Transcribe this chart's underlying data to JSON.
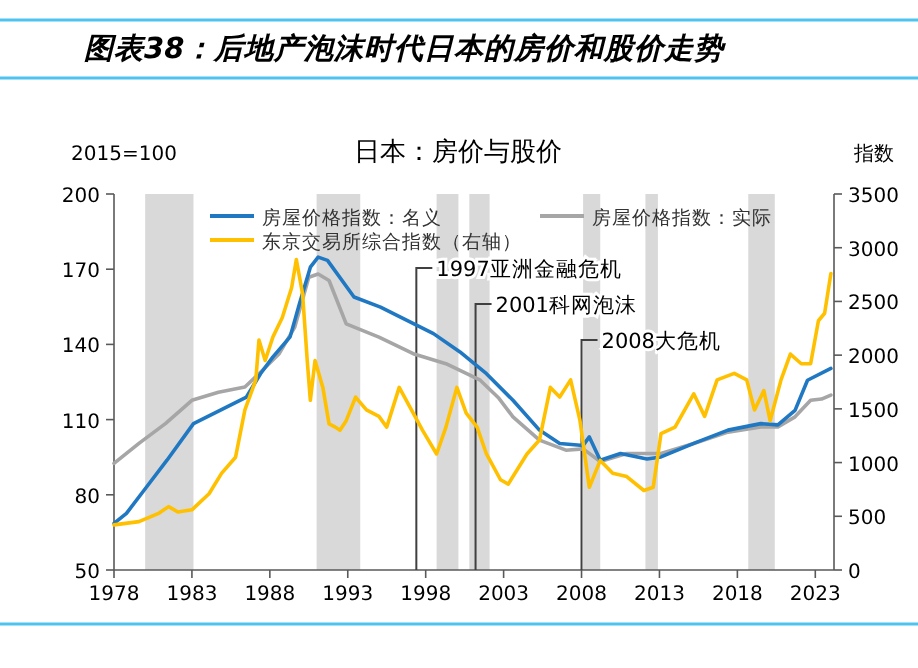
{
  "chart_data": {
    "type": "line",
    "title": "图表38：后地产泡沫时代日本的房价和股价走势",
    "subtitle": "日本：房价与股价",
    "ylabel": "2015=100",
    "y2label": "指数",
    "xlim": [
      1978,
      2024.2
    ],
    "xticks": [
      1978,
      1983,
      1988,
      1993,
      1998,
      2003,
      2008,
      2013,
      2018,
      2023
    ],
    "ylim": [
      50,
      200
    ],
    "yticks": [
      50,
      80,
      110,
      140,
      170,
      200
    ],
    "y2lim": [
      0,
      3500
    ],
    "y2ticks": [
      0,
      500,
      1000,
      1500,
      2000,
      2500,
      3000,
      3500
    ],
    "grid": false,
    "legend": "top",
    "bands": [
      {
        "axis": "x",
        "from": 1980.0,
        "to": 1983.1,
        "color": "#d9d9d9"
      },
      {
        "axis": "x",
        "from": 1991.0,
        "to": 1993.8,
        "color": "#d9d9d9"
      },
      {
        "axis": "x",
        "from": 1998.7,
        "to": 2000.1,
        "color": "#d9d9d9"
      },
      {
        "axis": "x",
        "from": 2000.8,
        "to": 2002.1,
        "color": "#d9d9d9"
      },
      {
        "axis": "x",
        "from": 2008.1,
        "to": 2009.2,
        "color": "#d9d9d9"
      },
      {
        "axis": "x",
        "from": 2012.1,
        "to": 2012.9,
        "color": "#d9d9d9"
      },
      {
        "axis": "x",
        "from": 2018.7,
        "to": 2020.4,
        "color": "#d9d9d9"
      }
    ],
    "ref_lines": [
      {
        "axis": "x",
        "value": 1997.4,
        "label": "1997亚洲金融危机",
        "color": "#404040"
      },
      {
        "axis": "x",
        "value": 2001.2,
        "label": "2001科网泡沫",
        "color": "#404040"
      },
      {
        "axis": "x",
        "value": 2008.0,
        "label": "2008大危机",
        "color": "#404040"
      }
    ],
    "series": [
      {
        "name": "房屋价格指数：实际",
        "color": "#a6a6a6",
        "x": [
          1978,
          1979.6,
          1981.3,
          1983,
          1984.7,
          1986.4,
          1987.3,
          1988.6,
          1989.6,
          1990.5,
          1991.1,
          1991.8,
          1992.9,
          1995,
          1997.2,
          1999.3,
          2001.5,
          2002.7,
          2003.6,
          2005.3,
          2007,
          2008.1,
          2009.2,
          2010.9,
          2013.1,
          2015.2,
          2017.4,
          2019.5,
          2020.6,
          2021.7,
          2022.7,
          2023.4,
          2024
        ],
        "values": [
          92.5,
          100.5,
          108.4,
          117.7,
          120.9,
          123,
          128.3,
          136.3,
          146.9,
          166.8,
          168.1,
          165.5,
          148.2,
          142.9,
          136.3,
          132.3,
          125.7,
          118.5,
          111.1,
          101.8,
          97.8,
          98.3,
          93.3,
          96.5,
          96.5,
          100.5,
          105,
          107.1,
          107.1,
          111.1,
          117.7,
          118.2,
          119.8
        ]
      },
      {
        "name": "房屋价格指数：名义",
        "color": "#1f78c1",
        "x": [
          1978,
          1978.8,
          1980.1,
          1981.4,
          1983.1,
          1984.8,
          1986.5,
          1987.4,
          1988.2,
          1989.3,
          1989.9,
          1990.6,
          1991.1,
          1991.7,
          1993.4,
          1995.1,
          1996.8,
          1998.5,
          2000.2,
          2001.9,
          2003.6,
          2005.3,
          2006.6,
          2008.1,
          2008.5,
          2009.2,
          2010.5,
          2012.2,
          2013.1,
          2015.2,
          2017.4,
          2019.5,
          2020.6,
          2021.7,
          2022.5,
          2024
        ],
        "values": [
          68.6,
          72.6,
          83.2,
          93.8,
          108.4,
          113.7,
          119,
          128.3,
          135,
          143,
          156.2,
          170.8,
          174.8,
          173.5,
          158.9,
          154.9,
          149.6,
          144.3,
          137,
          128.3,
          117.7,
          105.8,
          100.5,
          99.7,
          103.1,
          93.8,
          96.5,
          94.3,
          95.1,
          100.5,
          105.8,
          108.4,
          107.9,
          113.7,
          125.7,
          130.4
        ]
      },
      {
        "name": "东京交易所综合指数（右轴）",
        "color": "#ffc000",
        "axis": "y2",
        "x": [
          1978,
          1979.6,
          1980.9,
          1981.5,
          1982.1,
          1983,
          1984.1,
          1984.9,
          1985.8,
          1986.4,
          1987.1,
          1987.3,
          1987.7,
          1988.2,
          1988.8,
          1989.4,
          1989.7,
          1990.1,
          1990.4,
          1990.6,
          1990.9,
          1991.4,
          1991.8,
          1992.2,
          1992.5,
          1992.9,
          1993.5,
          1994.2,
          1995,
          1995.5,
          1996.3,
          1997.2,
          1997.8,
          1998.7,
          1999.3,
          2000,
          2000.6,
          2001.3,
          2001.9,
          2002.8,
          2003.3,
          2004.5,
          2005.3,
          2006,
          2006.6,
          2007.3,
          2007.9,
          2008.5,
          2009.2,
          2010,
          2010.9,
          2012,
          2012.6,
          2013.1,
          2014,
          2015.2,
          2015.9,
          2016.7,
          2017.8,
          2018.6,
          2019.1,
          2019.7,
          2020.1,
          2020.8,
          2021.4,
          2022.1,
          2022.7,
          2023.2,
          2023.6,
          2024
        ],
        "values": [
          420,
          450,
          530,
          590,
          540,
          560,
          710,
          900,
          1050,
          1490,
          1770,
          2140,
          1950,
          2170,
          2350,
          2630,
          2890,
          2570,
          1950,
          1580,
          1950,
          1700,
          1360,
          1330,
          1300,
          1390,
          1610,
          1490,
          1430,
          1330,
          1700,
          1460,
          1300,
          1080,
          1330,
          1700,
          1460,
          1330,
          1080,
          840,
          800,
          1080,
          1210,
          1700,
          1610,
          1770,
          1390,
          770,
          1020,
          900,
          870,
          740,
          770,
          1270,
          1330,
          1640,
          1430,
          1770,
          1830,
          1770,
          1490,
          1670,
          1390,
          1770,
          2010,
          1920,
          1920,
          2320,
          2390,
          2760
        ]
      }
    ]
  }
}
